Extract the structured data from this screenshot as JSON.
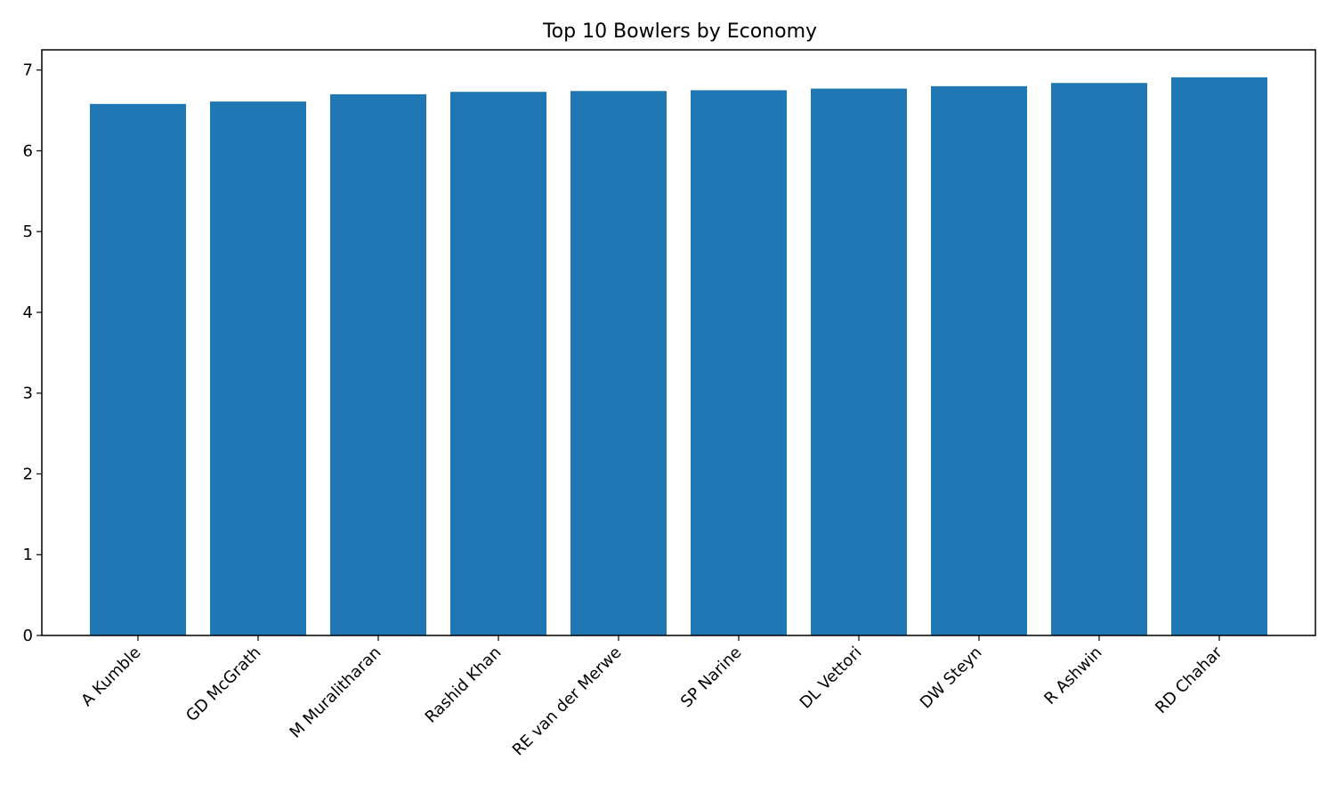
{
  "chart_data": {
    "type": "bar",
    "title": "Top 10 Bowlers by Economy",
    "xlabel": "",
    "ylabel": "",
    "categories": [
      "A Kumble",
      "GD McGrath",
      "M Muralitharan",
      "Rashid Khan",
      "RE van der Merwe",
      "SP Narine",
      "DL Vettori",
      "DW Steyn",
      "R Ashwin",
      "RD Chahar"
    ],
    "values": [
      6.58,
      6.61,
      6.7,
      6.73,
      6.74,
      6.75,
      6.77,
      6.8,
      6.84,
      6.91
    ],
    "ylim": [
      0,
      7.25
    ],
    "yticks": [
      0,
      1,
      2,
      3,
      4,
      5,
      6,
      7
    ],
    "bar_color": "#1f77b4",
    "grid": false,
    "legend": "none"
  }
}
